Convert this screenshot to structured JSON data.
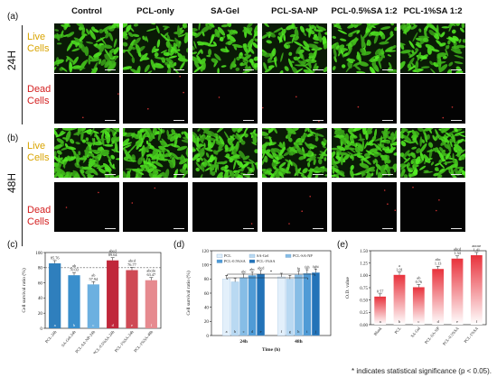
{
  "figure": {
    "columns": [
      "Control",
      "PCL-only",
      "SA-Gel",
      "PCL-SA-NP",
      "PCL-0.5%SA 1:2",
      "PCL-1%SA 1:2"
    ],
    "panels": {
      "a": {
        "letter": "(a)",
        "time": "24H",
        "live": [
          "Live",
          "Cells"
        ],
        "dead": [
          "Dead",
          "Cells"
        ]
      },
      "b": {
        "letter": "(b)",
        "time": "48H",
        "live": [
          "Live",
          "Cells"
        ],
        "dead": [
          "Dead",
          "Cells"
        ]
      }
    },
    "footnote": "* indicates statistical significance (p < 0.05)."
  },
  "chart_data": [
    {
      "panel": "(c)",
      "type": "bar",
      "ylabel": "Cell survival ratio (%)",
      "ylim": [
        0,
        100
      ],
      "yticks": [
        0,
        20,
        40,
        60,
        80,
        100
      ],
      "reference_line": 80,
      "categories": [
        "PCL-24h",
        "SA-Gel-24h",
        "PCL-SA-NP-24h",
        "PCL-0.5%SA-24h",
        "PCL-1%SA-24h",
        "PCL-1%SA-48h"
      ],
      "values": [
        85.76,
        70.03,
        57.94,
        89.64,
        76.77,
        63.47
      ],
      "value_labels": [
        "85.76",
        "70.03",
        "57.94",
        "89.64",
        "76.77",
        "63.47"
      ],
      "sig_labels": [
        "",
        "ab",
        "ab",
        "abcd",
        "abcd",
        "abcde"
      ],
      "bottom_letters": [
        "a",
        "b",
        "c",
        "d",
        "e",
        "f"
      ],
      "colors": [
        "#2f7fbd",
        "#3a8fcc",
        "#6cb0e0",
        "#c0273a",
        "#cf4a55",
        "#e68a8f"
      ]
    },
    {
      "panel": "(d)",
      "type": "bar",
      "ylabel": "Cell survival ratio (%)",
      "xlabel": "Time (h)",
      "ylim": [
        0,
        120
      ],
      "yticks": [
        0,
        20,
        40,
        60,
        80,
        100,
        120
      ],
      "categories": [
        "24h",
        "48h"
      ],
      "legend": [
        "PCL",
        "SA-Gel",
        "PCL-SA-NP",
        "PCL-0.5%SA",
        "PCL-1%SA"
      ],
      "series": [
        {
          "name": "PCL",
          "values": [
            80,
            83
          ],
          "color": "#e3f0fb"
        },
        {
          "name": "SA-Gel",
          "values": [
            76,
            80
          ],
          "color": "#b9d9f2"
        },
        {
          "name": "PCL-SA-NP",
          "values": [
            82,
            86
          ],
          "color": "#86bde6"
        },
        {
          "name": "PCL-0.5%SA",
          "values": [
            85,
            88
          ],
          "color": "#4f9bd6"
        },
        {
          "name": "PCL-1%SA",
          "values": [
            87,
            89
          ],
          "color": "#2373b8"
        }
      ],
      "sig_labels": [
        [
          "",
          "",
          "abc",
          "abc",
          "abcd"
        ],
        [
          "",
          "",
          "fg",
          "fgh",
          "fghi"
        ]
      ],
      "bottom_letters": [
        [
          "a",
          "b",
          "c",
          "d",
          "e"
        ],
        [
          "f",
          "g",
          "h",
          "i",
          "j"
        ]
      ]
    },
    {
      "panel": "(e)",
      "type": "bar",
      "ylabel": "O.D. value",
      "ylim": [
        0,
        1.5
      ],
      "yticks": [
        0.0,
        0.25,
        0.5,
        0.75,
        1.0,
        1.25,
        1.5
      ],
      "ytick_labels": [
        "0.00",
        "0.25",
        "0.50",
        "0.75",
        "1.00",
        "1.25",
        "1.50"
      ],
      "categories": [
        "Blank",
        "PCL",
        "SA-Gel",
        "PCL-SA-NP",
        "PCL-0.5%SA",
        "PCL-1%SA"
      ],
      "values": [
        0.57,
        1.01,
        0.76,
        1.13,
        1.34,
        1.41
      ],
      "value_labels": [
        "0.57",
        "1.01",
        "0.76",
        "1.13",
        "1.34",
        "1.41"
      ],
      "sig_labels": [
        "",
        "a",
        "ab",
        "abc",
        "abcd",
        "abcde"
      ],
      "bottom_letters": [
        "a",
        "b",
        "c",
        "d",
        "e",
        "f"
      ]
    }
  ]
}
